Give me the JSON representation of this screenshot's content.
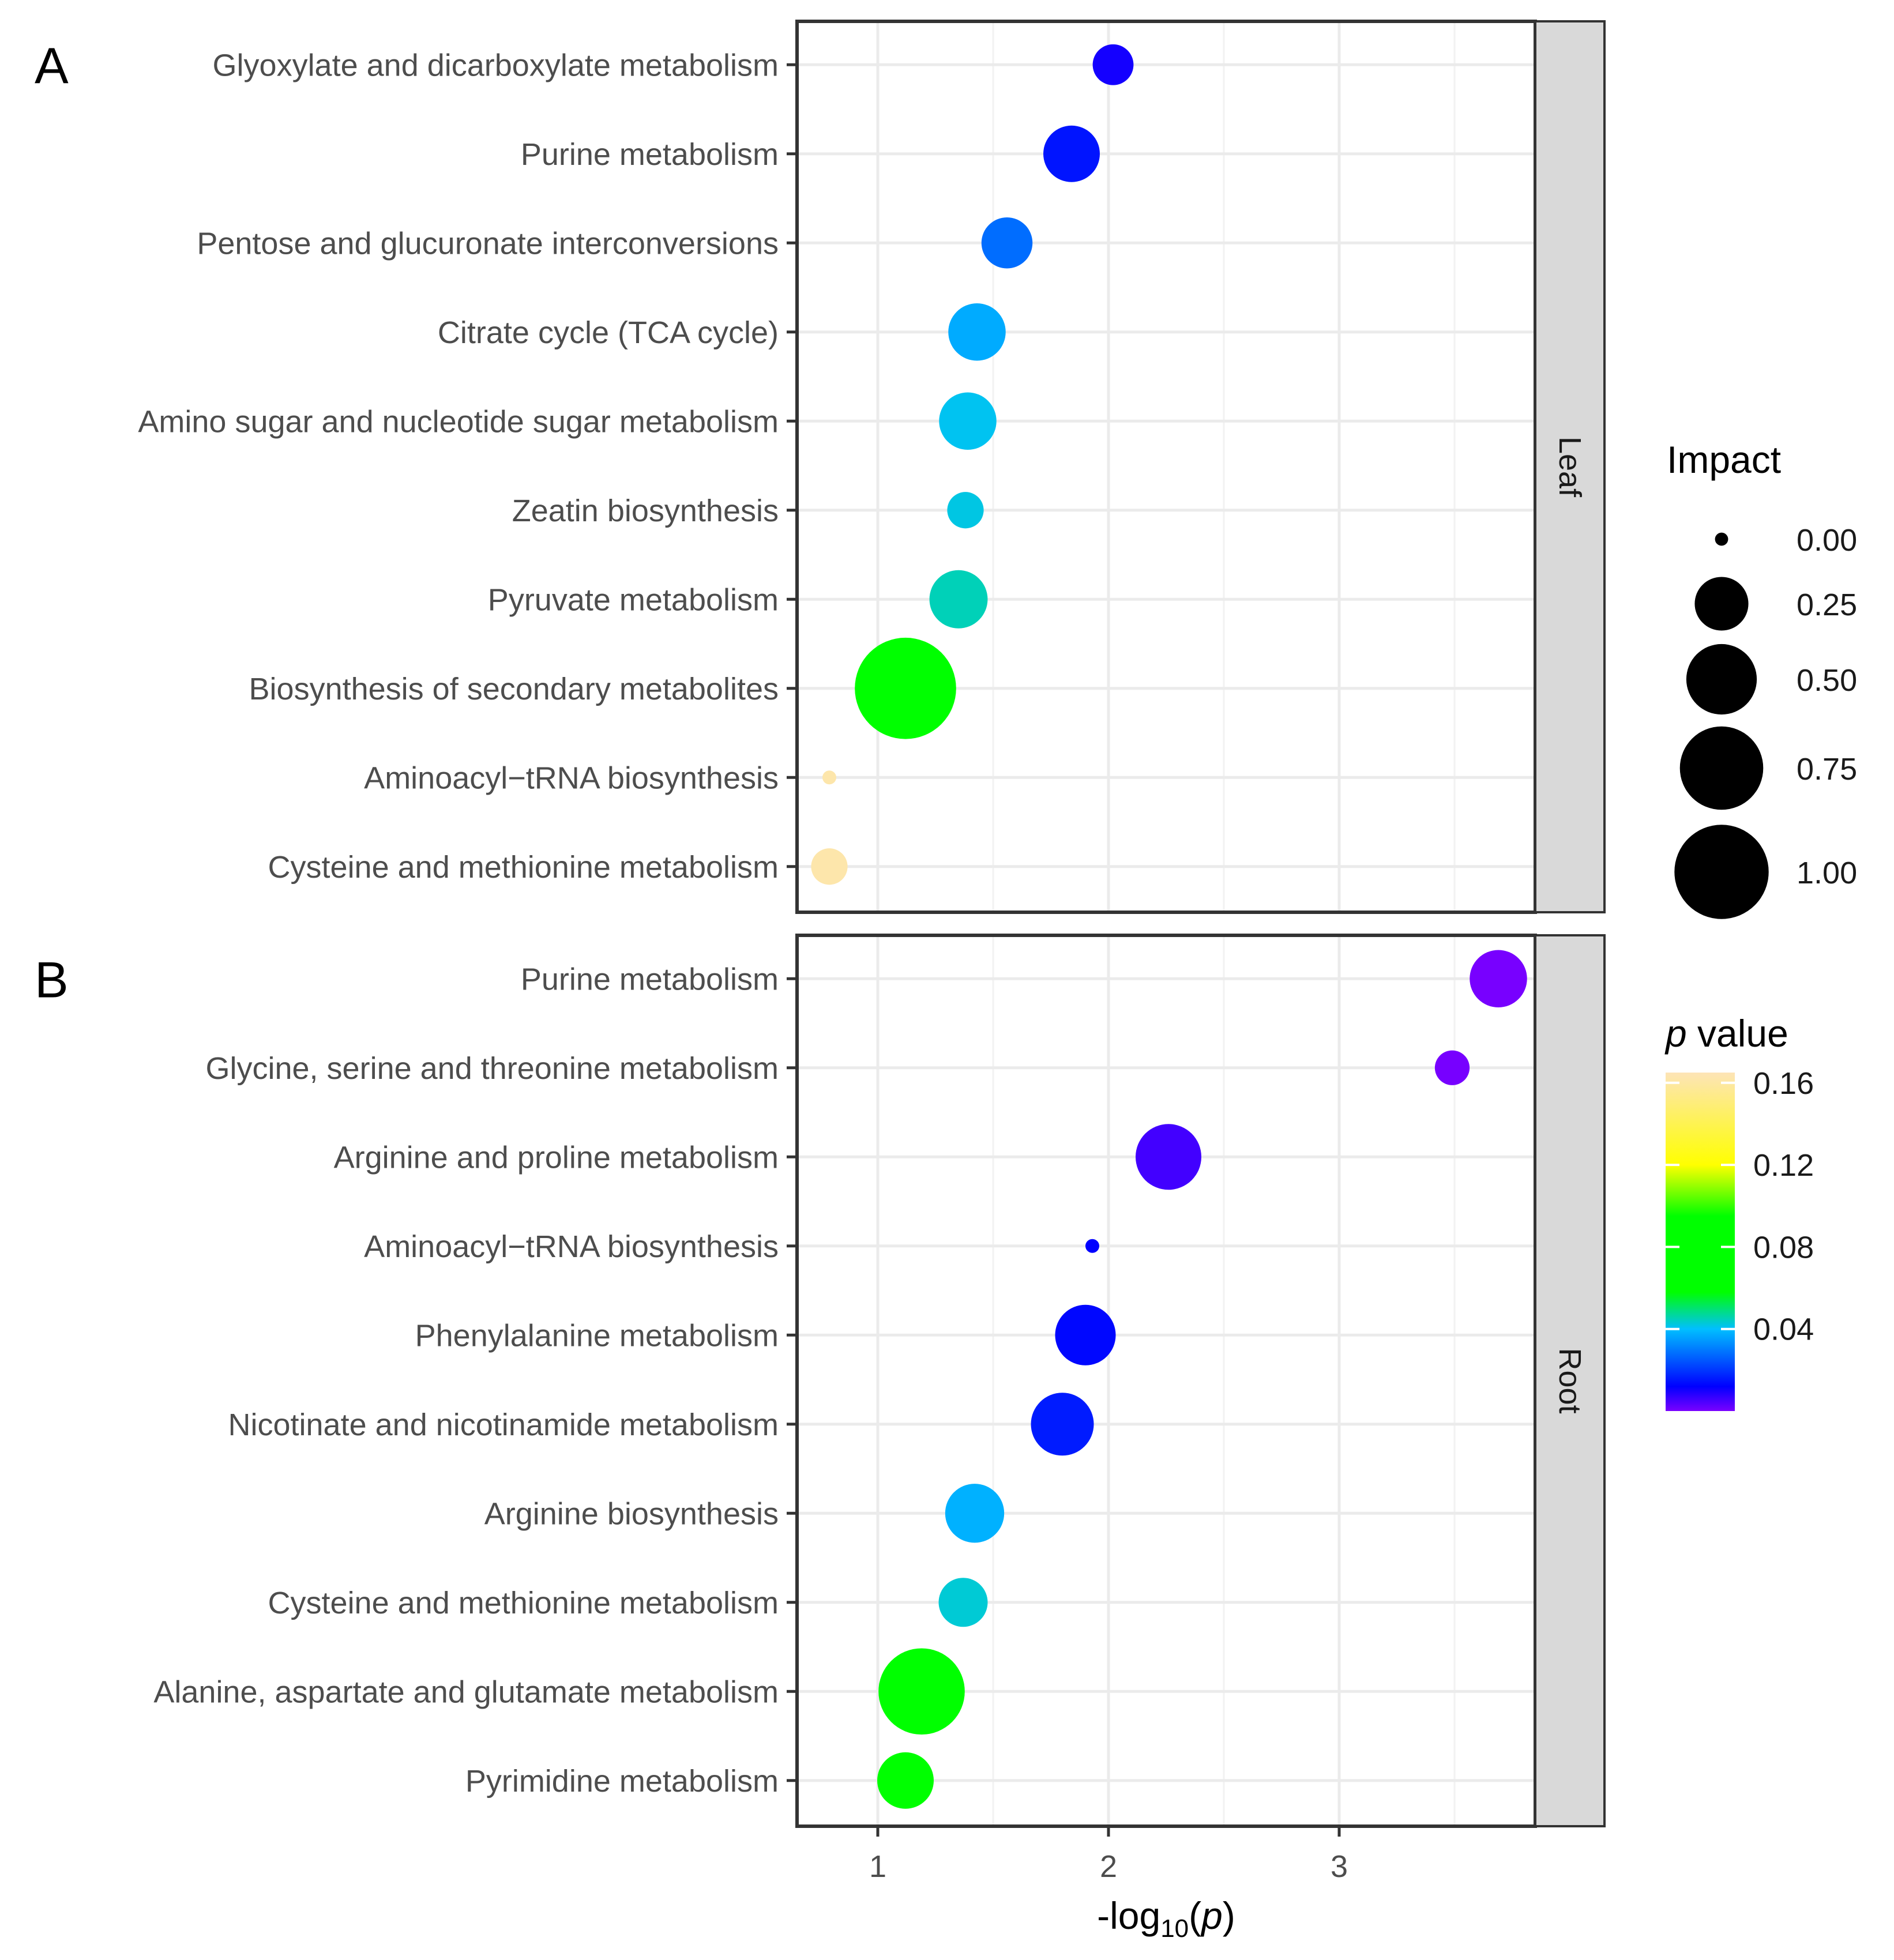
{
  "chart_data": {
    "type": "scatter",
    "title": "",
    "xlabel": "-log10(p)",
    "xlabel_parts": {
      "prefix": "-log",
      "subscript": "10",
      "open": "(",
      "italic": "p",
      "close": ")"
    },
    "xlim": [
      0.65,
      3.85
    ],
    "xticks": [
      1,
      2,
      3
    ],
    "grid": true,
    "panels": [
      {
        "letter": "A",
        "strip": "Leaf",
        "pathways": [
          {
            "name": "Glyoxylate and dicarboxylate metabolism",
            "x": 2.02,
            "impact": 0.1,
            "p": 0.01
          },
          {
            "name": "Purine metabolism",
            "x": 1.84,
            "impact": 0.25,
            "p": 0.015
          },
          {
            "name": "Pentose and glucuronate interconversions",
            "x": 1.56,
            "impact": 0.19,
            "p": 0.028
          },
          {
            "name": "Citrate cycle (TCA cycle)",
            "x": 1.43,
            "impact": 0.26,
            "p": 0.037
          },
          {
            "name": "Amino sugar and nucleotide sugar metabolism",
            "x": 1.39,
            "impact": 0.26,
            "p": 0.041
          },
          {
            "name": "Zeatin biosynthesis",
            "x": 1.38,
            "impact": 0.07,
            "p": 0.042
          },
          {
            "name": "Pyruvate metabolism",
            "x": 1.35,
            "impact": 0.27,
            "p": 0.045
          },
          {
            "name": "Biosynthesis of secondary metabolites",
            "x": 1.12,
            "impact": 1.05,
            "p": 0.076
          },
          {
            "name": "Aminoacyl−tRNA biosynthesis",
            "x": 0.79,
            "impact": 0.0,
            "p": 0.162
          },
          {
            "name": "Cysteine and methionine metabolism",
            "x": 0.79,
            "impact": 0.07,
            "p": 0.162
          }
        ]
      },
      {
        "letter": "B",
        "strip": "Root",
        "pathways": [
          {
            "name": "Purine metabolism",
            "x": 3.69,
            "impact": 0.26,
            "p": 0.0002
          },
          {
            "name": "Glycine, serine and threonine metabolism",
            "x": 3.49,
            "impact": 0.06,
            "p": 0.0003
          },
          {
            "name": "Arginine and proline metabolism",
            "x": 2.26,
            "impact": 0.37,
            "p": 0.0055
          },
          {
            "name": "Aminoacyl−tRNA biosynthesis",
            "x": 1.93,
            "impact": 0.0,
            "p": 0.012
          },
          {
            "name": "Phenylalanine metabolism",
            "x": 1.9,
            "impact": 0.3,
            "p": 0.013
          },
          {
            "name": "Nicotinate and nicotinamide metabolism",
            "x": 1.8,
            "impact": 0.33,
            "p": 0.016
          },
          {
            "name": "Arginine biosynthesis",
            "x": 1.42,
            "impact": 0.28,
            "p": 0.038
          },
          {
            "name": "Cysteine and methionine metabolism",
            "x": 1.37,
            "impact": 0.17,
            "p": 0.043
          },
          {
            "name": "Alanine, aspartate and glutamate metabolism",
            "x": 1.19,
            "impact": 0.72,
            "p": 0.065
          },
          {
            "name": "Pyrimidine metabolism",
            "x": 1.12,
            "impact": 0.25,
            "p": 0.076
          }
        ]
      }
    ],
    "legend_size": {
      "title": "Impact",
      "entries": [
        {
          "label": "0.00",
          "value": 0.0
        },
        {
          "label": "0.25",
          "value": 0.25
        },
        {
          "label": "0.50",
          "value": 0.5
        },
        {
          "label": "0.75",
          "value": 0.75
        },
        {
          "label": "1.00",
          "value": 1.0
        }
      ]
    },
    "legend_color": {
      "title_italic": "p",
      "title_rest": " value",
      "range": [
        0.0,
        0.165
      ],
      "ticks": [
        {
          "label": "0.16",
          "value": 0.16
        },
        {
          "label": "0.12",
          "value": 0.12
        },
        {
          "label": "0.08",
          "value": 0.08
        },
        {
          "label": "0.04",
          "value": 0.04
        }
      ],
      "gradient": [
        {
          "p": 0.0,
          "color": "#7a00ff"
        },
        {
          "p": 0.012,
          "color": "#0000ff"
        },
        {
          "p": 0.04,
          "color": "#00bfff"
        },
        {
          "p": 0.058,
          "color": "#00ff00"
        },
        {
          "p": 0.095,
          "color": "#00ff00"
        },
        {
          "p": 0.12,
          "color": "#ffff00"
        },
        {
          "p": 0.165,
          "color": "#fde4b7"
        }
      ]
    }
  }
}
